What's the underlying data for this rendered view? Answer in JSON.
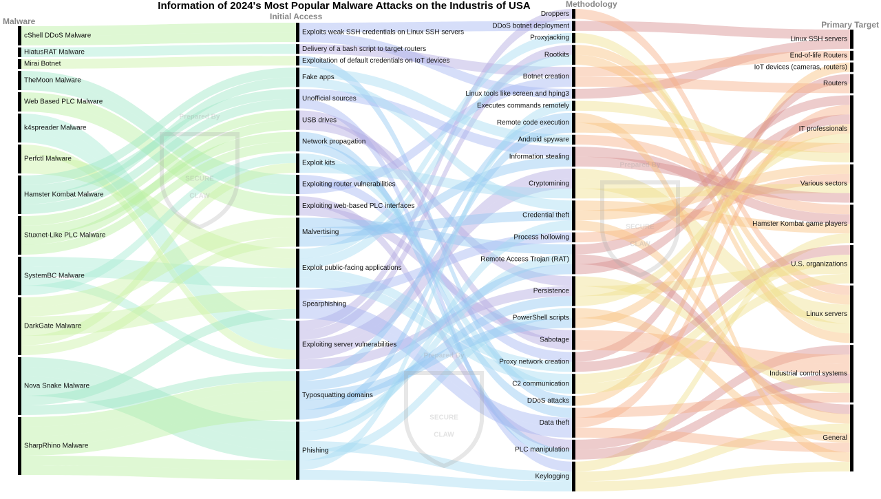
{
  "title": "Information of 2024's Most Popular Malware Attacks on the Industris of USA",
  "watermark": [
    "Prepared By",
    "SECURE",
    "CLAW"
  ],
  "columns": [
    {
      "header": "Malware",
      "colors": [
        "#b8f0a0",
        "#a6ead2",
        "#c9f2a4",
        "#9ee6c6"
      ],
      "nodes": [
        "cShell DDoS Malware",
        "HiatusRAT Malware",
        "Mirai Botnet",
        "TheMoon Malware",
        "Web Based PLC Malware",
        "k4spreader Malware",
        "Perfctl Malware",
        "Hamster Kombat Malware",
        "Stuxnet-Like PLC Malware",
        "SystemBC Malware",
        "DarkGate Malware",
        "Nova Snake Malware",
        "SharpRhino Malware"
      ]
    },
    {
      "header": "Initial Access",
      "colors": [
        "#a4b6f2",
        "#b2a8e0",
        "#92c8f2",
        "#a6dcf2"
      ],
      "nodes": [
        "Exploits weak SSH credentials on Linux SSH servers",
        "Delivery of a bash script to target routers",
        "Exploitation of default credentials on IoT devices",
        "Fake apps",
        "Unofficial sources",
        "USB drives",
        "Network propagation",
        "Exploit kits",
        "Exploiting router vulnerabilities",
        "Exploiting web-based PLC interfaces",
        "Malvertising",
        "Exploit public-facing applications",
        "Spearphishing",
        "Exploiting server vulnerabilities",
        "Typosquatting domains",
        "Phishing"
      ]
    },
    {
      "header": "Methodology",
      "colors": [
        "#f6b088",
        "#d68e8e",
        "#f0e08e",
        "#f8c27e"
      ],
      "nodes": [
        "Droppers",
        "DDoS botnet deployment",
        "Proxyjacking",
        "Rootkits",
        "Botnet creation",
        "Linux tools like screen and hping3",
        "Executes commands remotely",
        "Remote code execution",
        "Android spyware",
        "Information stealing",
        "Cryptomining",
        "Credential theft",
        "Process hollowing",
        "Remote Access Trojan (RAT)",
        "Persistence",
        "PowerShell scripts",
        "Sabotage",
        "Proxy network creation",
        "C2 communication",
        "DDoS attacks",
        "Data theft",
        "PLC manipulation",
        "Keylogging"
      ]
    },
    {
      "header": "Primary Target",
      "colors": [
        "#000000"
      ],
      "nodes": [
        "Linux SSH servers",
        "End-of-life Routers",
        "IoT devices (cameras, routers)",
        "Routers",
        "IT professionals",
        "Various sectors",
        "Hamster Kombat game players",
        "U.S. organizations",
        "Linux servers",
        "Industrial control systems",
        "General"
      ]
    }
  ],
  "paths": [
    [
      0,
      0,
      1,
      0
    ],
    [
      0,
      0,
      5,
      0
    ],
    [
      1,
      1,
      4,
      1
    ],
    [
      2,
      2,
      19,
      2
    ],
    [
      3,
      8,
      17,
      3
    ],
    [
      3,
      8,
      4,
      3
    ],
    [
      4,
      9,
      21,
      9
    ],
    [
      4,
      9,
      16,
      9
    ],
    [
      5,
      13,
      0,
      8
    ],
    [
      5,
      13,
      3,
      8
    ],
    [
      5,
      13,
      10,
      8
    ],
    [
      6,
      13,
      10,
      8
    ],
    [
      6,
      11,
      2,
      8
    ],
    [
      6,
      11,
      3,
      8
    ],
    [
      7,
      3,
      8,
      6
    ],
    [
      7,
      4,
      9,
      6
    ],
    [
      7,
      3,
      11,
      6
    ],
    [
      7,
      4,
      22,
      6
    ],
    [
      8,
      5,
      16,
      9
    ],
    [
      8,
      6,
      21,
      9
    ],
    [
      8,
      5,
      14,
      9
    ],
    [
      8,
      6,
      20,
      9
    ],
    [
      9,
      11,
      17,
      7
    ],
    [
      9,
      11,
      18,
      7
    ],
    [
      9,
      13,
      14,
      7
    ],
    [
      9,
      7,
      18,
      7
    ],
    [
      10,
      10,
      13,
      4
    ],
    [
      10,
      10,
      11,
      5
    ],
    [
      10,
      12,
      12,
      5
    ],
    [
      10,
      12,
      20,
      4
    ],
    [
      10,
      7,
      10,
      5
    ],
    [
      10,
      10,
      9,
      5
    ],
    [
      11,
      15,
      13,
      10
    ],
    [
      11,
      15,
      11,
      10
    ],
    [
      11,
      15,
      22,
      10
    ],
    [
      11,
      15,
      15,
      10
    ],
    [
      11,
      12,
      20,
      10
    ],
    [
      11,
      14,
      7,
      10
    ],
    [
      12,
      14,
      13,
      4
    ],
    [
      12,
      14,
      15,
      4
    ],
    [
      12,
      14,
      14,
      4
    ],
    [
      12,
      14,
      7,
      4
    ],
    [
      12,
      15,
      6,
      4
    ],
    [
      12,
      15,
      22,
      10
    ]
  ]
}
